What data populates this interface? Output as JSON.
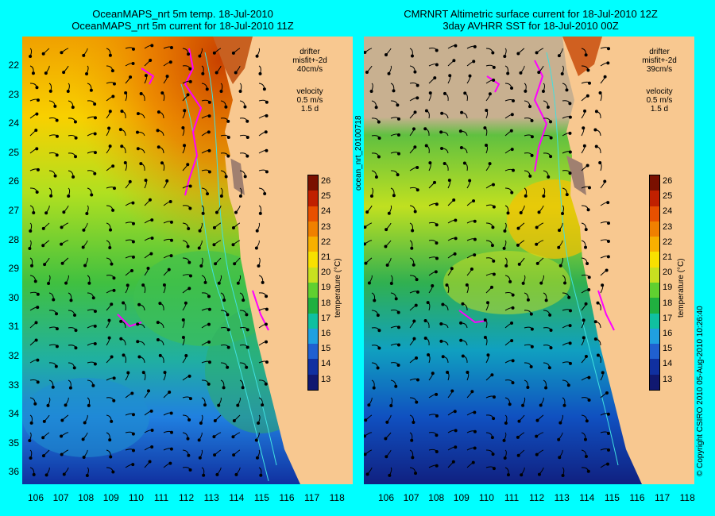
{
  "left_panel": {
    "title_line1": "OceanMAPS_nrt 5m temp. 18-Jul-2010",
    "title_line2": "OceanMAPS_nrt 5m current for 18-Jul-2010 11Z",
    "drifter_label": "drifter",
    "misfit_label": "misfit+-2d",
    "drifter_speed": "40cm/s",
    "velocity_label": "velocity",
    "velocity_value": "0.5 m/s",
    "velocity_scale": "1.5 d"
  },
  "right_panel": {
    "title_line1": "CMRNRT Altimetric surface current for 18-Jul-2010 12Z",
    "title_line2": "3day AVHRR SST for 18-Jul-2010 00Z",
    "drifter_label": "drifter",
    "misfit_label": "misfit+-2d",
    "drifter_speed": "39cm/s",
    "velocity_label": "velocity",
    "velocity_value": "0.5 m/s",
    "velocity_scale": "1.5 d"
  },
  "product_id": "ocean_nrt_20100718",
  "copyright": "© Copyright CSIRO 2010   05-Aug-2010 10:26:40",
  "colorbar": {
    "label": "temperature (°C)",
    "ticks": [
      "26",
      "25",
      "24",
      "23",
      "22",
      "21",
      "20",
      "19",
      "18",
      "17",
      "16",
      "15",
      "14",
      "13"
    ],
    "colors": [
      "#7a1000",
      "#c02000",
      "#e85000",
      "#f08000",
      "#f8b000",
      "#f8e000",
      "#c8e020",
      "#60d030",
      "#20b040",
      "#10c0a0",
      "#20a0e0",
      "#2060d0",
      "#1030a0",
      "#101870"
    ]
  },
  "latitudes": [
    "22",
    "23",
    "24",
    "25",
    "26",
    "27",
    "28",
    "29",
    "30",
    "31",
    "32",
    "33",
    "34",
    "35",
    "36"
  ],
  "longitudes": [
    "106",
    "107",
    "108",
    "109",
    "110",
    "111",
    "112",
    "113",
    "114",
    "115",
    "116",
    "117",
    "118"
  ],
  "colors": {
    "land": "#f8c890",
    "background": "#00ffff",
    "drifter": "#ff00ff",
    "contour": "#40e0e0"
  }
}
